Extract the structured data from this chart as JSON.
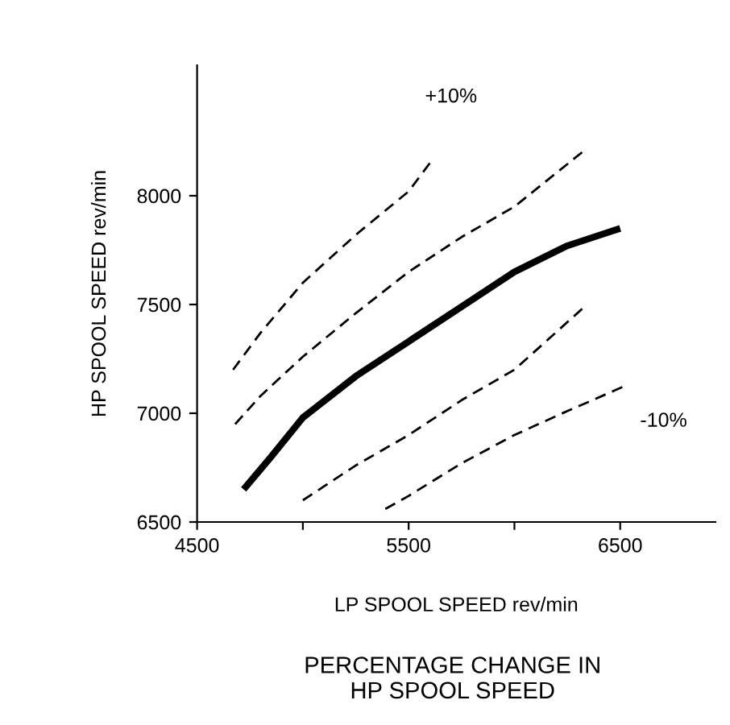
{
  "chart_data": {
    "type": "line",
    "title": "PERCENTAGE CHANGE IN\nHP SPOOL SPEED",
    "xlabel": "LP SPOOL SPEED rev/min",
    "ylabel": "HP SPOOL SPEED rev/min",
    "xlim": [
      4500,
      6950
    ],
    "ylim": [
      6500,
      8600
    ],
    "xticks": [
      4500,
      {
        "value": 5000,
        "label": null
      },
      5500,
      {
        "value": 6000,
        "label": null
      },
      6500
    ],
    "yticks": [
      6500,
      7000,
      7500,
      8000
    ],
    "grid": false,
    "legend": false,
    "marker": "none",
    "series": [
      {
        "color": "#000000",
        "line_style": "dashed",
        "x": [
          4670,
          4800,
          5000,
          5250,
          5500,
          5600
        ],
        "values": [
          7200,
          7370,
          7600,
          7820,
          8020,
          8150
        ]
      },
      {
        "color": "#000000",
        "line_style": "dashed",
        "x": [
          4680,
          4800,
          5000,
          5250,
          5500,
          5750,
          6000,
          6320
        ],
        "values": [
          6950,
          7080,
          7260,
          7460,
          7650,
          7810,
          7950,
          8200
        ]
      },
      {
        "color": "#000000",
        "line_style": "solid",
        "x": [
          4720,
          4850,
          5000,
          5250,
          5500,
          5750,
          6000,
          6250,
          6500
        ],
        "values": [
          6650,
          6800,
          6980,
          7170,
          7330,
          7490,
          7650,
          7770,
          7850
        ]
      },
      {
        "color": "#000000",
        "line_style": "dashed",
        "x": [
          5000,
          5250,
          5500,
          5750,
          6000,
          6320
        ],
        "values": [
          6600,
          6760,
          6900,
          7060,
          7200,
          7480
        ]
      },
      {
        "color": "#000000",
        "line_style": "dashed",
        "x": [
          5390,
          5500,
          5750,
          6000,
          6250,
          6510
        ],
        "values": [
          6560,
          6620,
          6770,
          6900,
          7010,
          7120
        ]
      }
    ],
    "annotations": [
      "+10%",
      "-10%"
    ]
  }
}
